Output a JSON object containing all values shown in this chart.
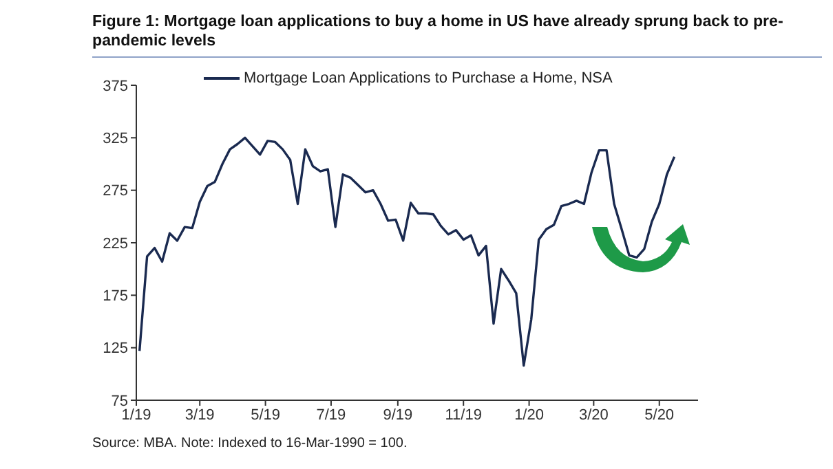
{
  "chart_data": {
    "type": "line",
    "title": "Figure 1: Mortgage loan applications to buy a home in US have already sprung back to pre-pandemic levels",
    "x": [
      "2019-01-04",
      "2019-01-11",
      "2019-01-18",
      "2019-01-25",
      "2019-02-01",
      "2019-02-08",
      "2019-02-15",
      "2019-02-22",
      "2019-03-01",
      "2019-03-08",
      "2019-03-15",
      "2019-03-22",
      "2019-03-29",
      "2019-04-05",
      "2019-04-12",
      "2019-04-19",
      "2019-04-26",
      "2019-05-03",
      "2019-05-10",
      "2019-05-17",
      "2019-05-24",
      "2019-05-31",
      "2019-06-07",
      "2019-06-14",
      "2019-06-21",
      "2019-06-28",
      "2019-07-05",
      "2019-07-12",
      "2019-07-19",
      "2019-07-26",
      "2019-08-02",
      "2019-08-09",
      "2019-08-16",
      "2019-08-23",
      "2019-08-30",
      "2019-09-06",
      "2019-09-13",
      "2019-09-20",
      "2019-09-27",
      "2019-10-04",
      "2019-10-11",
      "2019-10-18",
      "2019-10-25",
      "2019-11-01",
      "2019-11-08",
      "2019-11-15",
      "2019-11-22",
      "2019-11-29",
      "2019-12-06",
      "2019-12-13",
      "2019-12-20",
      "2019-12-27",
      "2020-01-03",
      "2020-01-10",
      "2020-01-17",
      "2020-01-24",
      "2020-01-31",
      "2020-02-07",
      "2020-02-14",
      "2020-02-21",
      "2020-02-28",
      "2020-03-06",
      "2020-03-13",
      "2020-03-20",
      "2020-03-27",
      "2020-04-03",
      "2020-04-10",
      "2020-04-17",
      "2020-04-24",
      "2020-05-01",
      "2020-05-08",
      "2020-05-15"
    ],
    "series": [
      {
        "name": "Mortgage Loan Applications to Purchase a Home, NSA",
        "color": "#1a2a50",
        "values": [
          122,
          212,
          220,
          207,
          234,
          227,
          240,
          239,
          264,
          279,
          283,
          300,
          314,
          319,
          325,
          317,
          309,
          322,
          321,
          314,
          304,
          262,
          314,
          298,
          293,
          295,
          240,
          290,
          287,
          280,
          273,
          275,
          262,
          246,
          247,
          227,
          263,
          253,
          253,
          252,
          241,
          233,
          237,
          228,
          232,
          213,
          222,
          148,
          200,
          189,
          177,
          108,
          152,
          228,
          238,
          242,
          260,
          262,
          265,
          262,
          292,
          313,
          313,
          262,
          238,
          213,
          211,
          219,
          245,
          262,
          290,
          307
        ]
      }
    ],
    "xlim": [
      "2019-01-01",
      "2020-06-06"
    ],
    "xticks": [
      {
        "value": "2019-01-01",
        "label": "1/19"
      },
      {
        "value": "2019-03-01",
        "label": "3/19"
      },
      {
        "value": "2019-05-01",
        "label": "5/19"
      },
      {
        "value": "2019-07-01",
        "label": "7/19"
      },
      {
        "value": "2019-09-01",
        "label": "9/19"
      },
      {
        "value": "2019-11-01",
        "label": "11/19"
      },
      {
        "value": "2020-01-01",
        "label": "1/20"
      },
      {
        "value": "2020-03-01",
        "label": "3/20"
      },
      {
        "value": "2020-05-01",
        "label": "5/20"
      }
    ],
    "ylim": [
      75,
      375
    ],
    "yticks": [
      75,
      125,
      175,
      225,
      275,
      325,
      375
    ],
    "grid": false,
    "legend": "top",
    "marker": "none",
    "line_style": "solid",
    "annotations": [
      "Source: MBA. Note:  Indexed to 16-Mar-1990 = 100."
    ]
  }
}
